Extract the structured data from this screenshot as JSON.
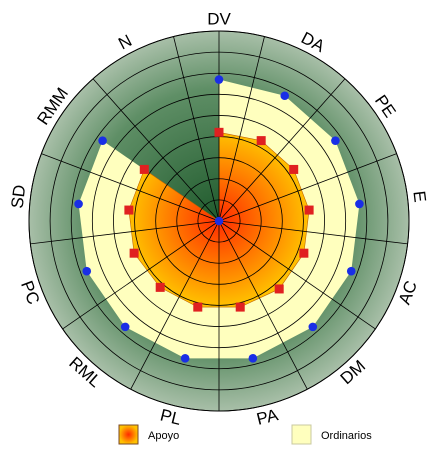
{
  "chart_data": {
    "type": "radar",
    "axis_labels": [
      "DV",
      "DA",
      "PE",
      "E",
      "AC",
      "DM",
      "PA",
      "PL",
      "RML",
      "PC",
      "SD",
      "RMM",
      "N"
    ],
    "rlim": [
      0,
      9
    ],
    "rings": 9,
    "grid": true,
    "legend_position": "bottom",
    "series": [
      {
        "name": "Apoyo",
        "values": [
          4.2,
          4.3,
          4.3,
          4.3,
          4.3,
          4.3,
          4.2,
          4.2,
          4.2,
          4.3,
          4.3,
          4.3,
          0
        ],
        "color": "#e02020",
        "fill_inner": "#ff2a00",
        "fill_outer": "#ffc200"
      },
      {
        "name": "Ordinarios",
        "values": [
          6.7,
          6.7,
          6.7,
          6.7,
          6.7,
          6.7,
          6.7,
          6.7,
          6.7,
          6.7,
          6.7,
          6.7,
          0
        ],
        "color": "#1a2ee6",
        "fill": "#ffffbe"
      }
    ]
  },
  "colors": {
    "outer_band": "#a8bfa8",
    "inner_green": "#2e7a3c",
    "grid_line": "#000000"
  }
}
